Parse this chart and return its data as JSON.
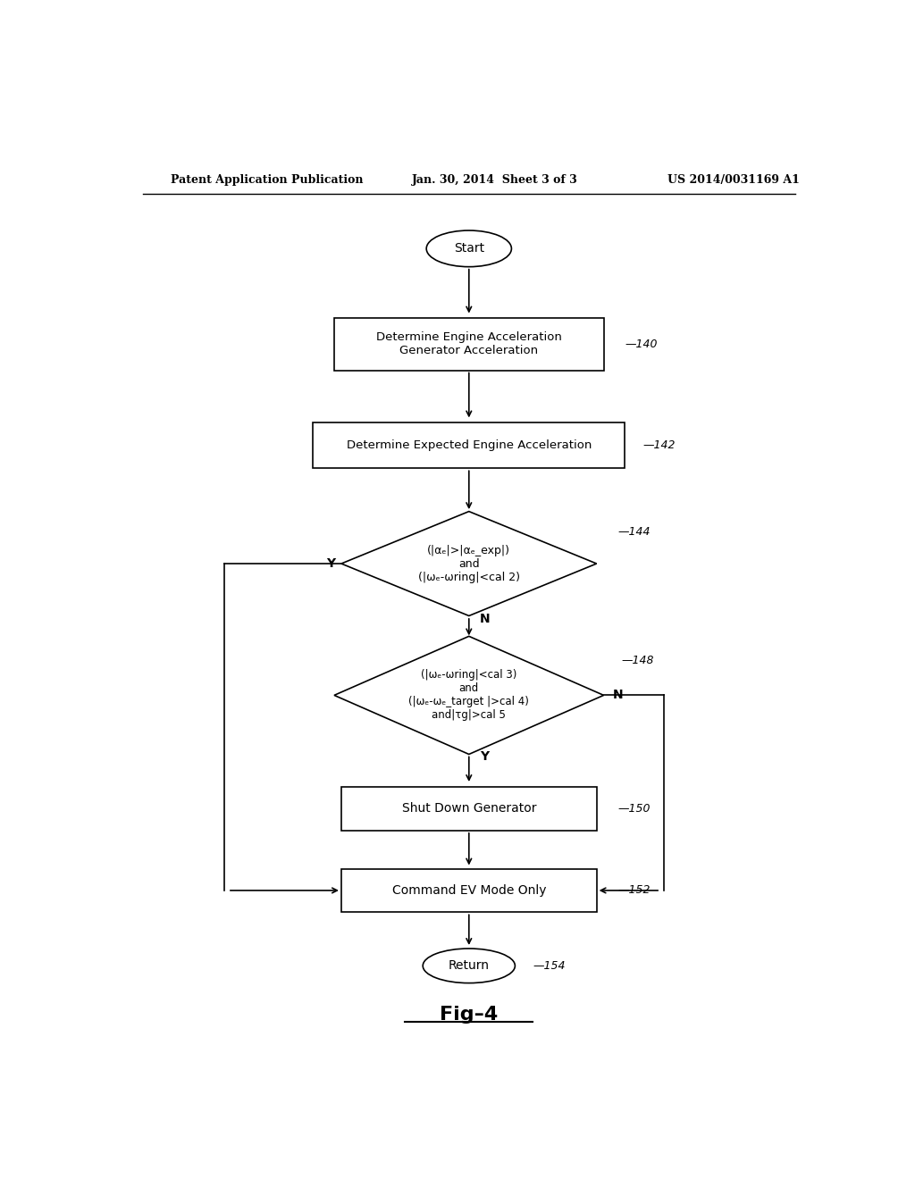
{
  "bg_color": "#ffffff",
  "header_left": "Patent Application Publication",
  "header_center": "Jan. 30, 2014  Sheet 3 of 3",
  "header_right": "US 2014/0031169 A1",
  "figure_label": "Fig-4"
}
